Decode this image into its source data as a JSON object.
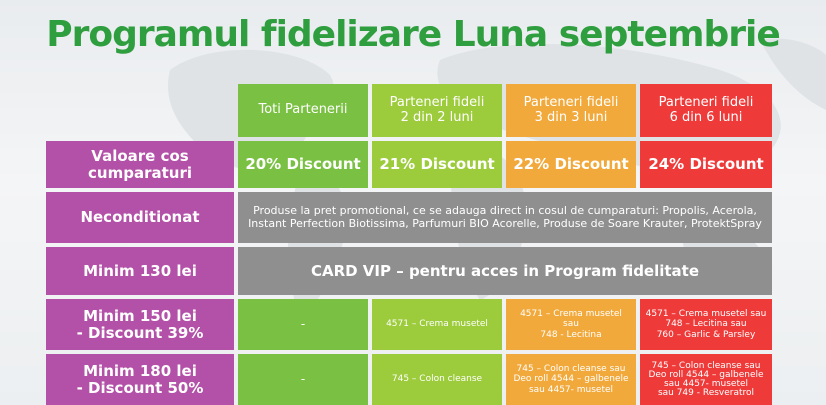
{
  "title": "Programul fidelizare Luna septembrie",
  "columns": [
    {
      "line1": "Toti Partenerii",
      "line2": ""
    },
    {
      "line1": "Parteneri fideli",
      "line2": "2 din 2 luni"
    },
    {
      "line1": "Parteneri fideli",
      "line2": "3 din 3 luni"
    },
    {
      "line1": "Parteneri fideli",
      "line2": "6 din 6 luni"
    }
  ],
  "rows": {
    "valoare": {
      "label": "Valoare cos cumparaturi",
      "values": [
        "20% Discount",
        "21% Discount",
        "22% Discount",
        "24% Discount"
      ]
    },
    "neconditionat": {
      "label": "Neconditionat",
      "text_line1": "Produse la pret promotional, ce se adauga direct in cosul de cumparaturi:  Propolis, Acerola,",
      "text_line2": "Instant Perfection Biotissima, Parfumuri BIO Acorelle, Produse de Soare Krauter, ProtektSpray"
    },
    "minim130": {
      "label": "Minim 130 lei",
      "text": "CARD VIP – pentru acces in Program fidelitate"
    },
    "minim150": {
      "label_line1": "Minim 150 lei",
      "label_line2": "- Discount 39%",
      "col1": "-",
      "col2": "4571 – Crema musetel",
      "col3": [
        "4571 – Crema musetel",
        "sau",
        "748 - Lecitina"
      ],
      "col4": [
        "4571 – Crema musetel sau",
        "748 – Lecitina sau",
        "760 – Garlic & Parsley"
      ]
    },
    "minim180": {
      "label_line1": "Minim 180 lei",
      "label_line2": "- Discount 50%",
      "col1": "-",
      "col2": "745 – Colon cleanse",
      "col3": [
        "745 – Colon cleanse sau",
        "Deo roll 4544 – galbenele",
        "sau 4457- musetel"
      ],
      "col4": [
        "745 – Colon cleanse sau",
        "Deo roll 4544 – galbenele",
        "sau 4457- musetel",
        "sau 749 - Resveratrol"
      ]
    }
  },
  "colors": {
    "title": "#2e9e3e",
    "green": "#7ac143",
    "light_green": "#9ccb3b",
    "orange": "#f2a93b",
    "red": "#ee3b3a",
    "purple": "#b350a7",
    "gray": "#8f8f8f"
  }
}
